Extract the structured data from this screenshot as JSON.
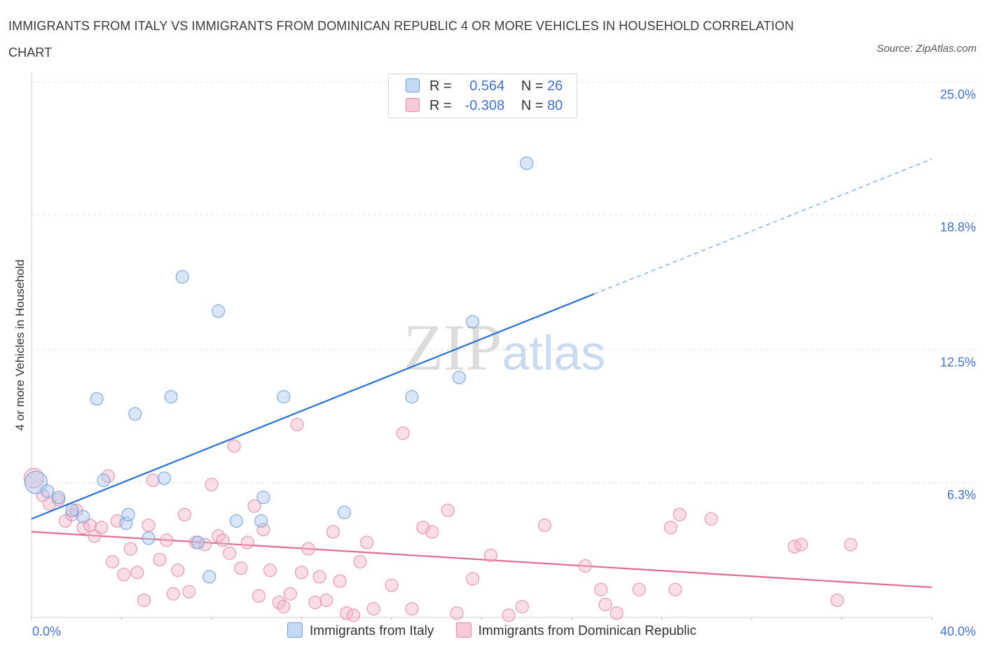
{
  "chart_data": {
    "type": "scatter",
    "title": "IMMIGRANTS FROM ITALY VS IMMIGRANTS FROM DOMINICAN REPUBLIC 4 OR MORE VEHICLES IN HOUSEHOLD CORRELATION CHART",
    "source": "Source: ZipAtlas.com",
    "ylabel": "4 or more Vehicles in Household",
    "xlim": [
      0,
      40
    ],
    "ylim": [
      0,
      25
    ],
    "x_tick_labels": [
      "0.0%",
      "40.0%"
    ],
    "y_ticks": [
      {
        "value": 25.0,
        "label": "25.0%"
      },
      {
        "value": 18.8,
        "label": "18.8%"
      },
      {
        "value": 12.5,
        "label": "12.5%"
      },
      {
        "value": 6.3,
        "label": "6.3%"
      }
    ],
    "watermark": "ZIPatlas",
    "legend_box": [
      {
        "r_label": "R =",
        "r_value": "0.564",
        "n_label": "N =",
        "n_value": "26"
      },
      {
        "r_label": "R =",
        "r_value": "-0.308",
        "n_label": "N =",
        "n_value": "80"
      }
    ],
    "series": [
      {
        "name": "Immigrants from Italy",
        "color": "#a9c7f0",
        "stroke": "#6f9fd8",
        "line_color": "#2a6fd1",
        "trend": {
          "x0": 0,
          "y0": 4.6,
          "x1": 25,
          "y1": 15.1,
          "dash_to_x": 40,
          "dash_to_y": 21.4
        },
        "points": [
          [
            0.2,
            6.3,
            16
          ],
          [
            0.7,
            5.9,
            9
          ],
          [
            1.2,
            5.6,
            9
          ],
          [
            1.8,
            5.0,
            9
          ],
          [
            2.3,
            4.7,
            9
          ],
          [
            2.9,
            10.2,
            9
          ],
          [
            3.2,
            6.4,
            9
          ],
          [
            4.2,
            4.4,
            9
          ],
          [
            4.3,
            4.8,
            9
          ],
          [
            4.6,
            9.5,
            9
          ],
          [
            5.2,
            3.7,
            9
          ],
          [
            5.9,
            6.5,
            9
          ],
          [
            6.2,
            10.3,
            9
          ],
          [
            6.7,
            15.9,
            9
          ],
          [
            7.4,
            3.5,
            9
          ],
          [
            7.9,
            1.9,
            9
          ],
          [
            8.3,
            14.3,
            9
          ],
          [
            9.1,
            4.5,
            9
          ],
          [
            10.2,
            4.5,
            9
          ],
          [
            10.3,
            5.6,
            9
          ],
          [
            11.2,
            10.3,
            9
          ],
          [
            13.9,
            4.9,
            9
          ],
          [
            16.9,
            10.3,
            9
          ],
          [
            19.0,
            11.2,
            9
          ],
          [
            19.6,
            13.8,
            9
          ],
          [
            22.0,
            21.2,
            9
          ]
        ]
      },
      {
        "name": "Immigrants from Dominican Republic",
        "color": "#f5b5c8",
        "stroke": "#e58aa8",
        "line_color": "#e06a93",
        "trend": {
          "x0": 0,
          "y0": 4.0,
          "x1": 40,
          "y1": 1.4
        },
        "points": [
          [
            0.1,
            6.5,
            14
          ],
          [
            0.5,
            5.7,
            9
          ],
          [
            0.8,
            5.3,
            9
          ],
          [
            1.2,
            5.5,
            9
          ],
          [
            1.5,
            4.5,
            9
          ],
          [
            1.8,
            4.8,
            9
          ],
          [
            2.0,
            5.0,
            9
          ],
          [
            2.3,
            4.2,
            9
          ],
          [
            2.6,
            4.3,
            9
          ],
          [
            2.8,
            3.8,
            9
          ],
          [
            3.1,
            4.2,
            9
          ],
          [
            3.4,
            6.6,
            9
          ],
          [
            3.6,
            2.6,
            9
          ],
          [
            3.8,
            4.5,
            9
          ],
          [
            4.1,
            2.0,
            9
          ],
          [
            4.4,
            3.2,
            9
          ],
          [
            4.7,
            2.1,
            9
          ],
          [
            5.0,
            0.8,
            9
          ],
          [
            5.2,
            4.3,
            9
          ],
          [
            5.4,
            6.4,
            9
          ],
          [
            5.7,
            2.7,
            9
          ],
          [
            6.0,
            3.6,
            9
          ],
          [
            6.3,
            1.1,
            9
          ],
          [
            6.5,
            2.2,
            9
          ],
          [
            6.8,
            4.8,
            9
          ],
          [
            7.0,
            1.2,
            9
          ],
          [
            7.3,
            3.5,
            9
          ],
          [
            7.7,
            3.4,
            9
          ],
          [
            8.0,
            6.2,
            9
          ],
          [
            8.3,
            3.8,
            9
          ],
          [
            8.5,
            3.6,
            9
          ],
          [
            8.8,
            3.0,
            9
          ],
          [
            9.0,
            8.0,
            9
          ],
          [
            9.3,
            2.3,
            9
          ],
          [
            9.6,
            3.5,
            9
          ],
          [
            9.9,
            5.2,
            9
          ],
          [
            10.1,
            1.0,
            9
          ],
          [
            10.3,
            4.1,
            9
          ],
          [
            10.6,
            2.2,
            9
          ],
          [
            11.0,
            0.7,
            9
          ],
          [
            11.2,
            0.5,
            9
          ],
          [
            11.5,
            1.1,
            9
          ],
          [
            11.8,
            9.0,
            9
          ],
          [
            12.0,
            2.1,
            9
          ],
          [
            12.3,
            3.2,
            9
          ],
          [
            12.6,
            0.7,
            9
          ],
          [
            12.8,
            1.9,
            9
          ],
          [
            13.1,
            0.8,
            9
          ],
          [
            13.4,
            4.0,
            9
          ],
          [
            13.7,
            1.7,
            9
          ],
          [
            14.0,
            0.2,
            9
          ],
          [
            14.3,
            0.1,
            9
          ],
          [
            14.6,
            2.6,
            9
          ],
          [
            14.9,
            3.5,
            9
          ],
          [
            15.2,
            0.4,
            9
          ],
          [
            16.0,
            1.5,
            9
          ],
          [
            16.5,
            8.6,
            9
          ],
          [
            16.9,
            0.4,
            9
          ],
          [
            17.4,
            4.2,
            9
          ],
          [
            17.8,
            4.0,
            9
          ],
          [
            18.5,
            5.0,
            9
          ],
          [
            18.9,
            0.2,
            9
          ],
          [
            19.6,
            1.8,
            9
          ],
          [
            20.4,
            2.9,
            9
          ],
          [
            21.2,
            0.1,
            9
          ],
          [
            21.8,
            0.5,
            9
          ],
          [
            22.8,
            4.3,
            9
          ],
          [
            24.6,
            2.4,
            9
          ],
          [
            25.3,
            1.3,
            9
          ],
          [
            25.5,
            0.6,
            9
          ],
          [
            26.0,
            0.2,
            9
          ],
          [
            27.0,
            1.3,
            9
          ],
          [
            28.4,
            4.2,
            9
          ],
          [
            28.8,
            4.8,
            9
          ],
          [
            28.6,
            1.3,
            9
          ],
          [
            30.2,
            4.6,
            9
          ],
          [
            33.9,
            3.3,
            9
          ],
          [
            34.2,
            3.4,
            9
          ],
          [
            35.8,
            0.8,
            9
          ],
          [
            36.4,
            3.4,
            9
          ]
        ]
      }
    ]
  }
}
